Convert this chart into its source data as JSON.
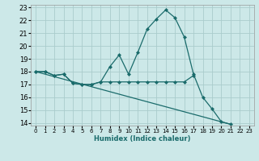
{
  "xlabel": "Humidex (Indice chaleur)",
  "bg_color": "#cce8e8",
  "grid_color": "#aacccc",
  "line_color": "#1a6b6b",
  "xlim": [
    -0.5,
    23.5
  ],
  "ylim": [
    13.8,
    23.2
  ],
  "yticks": [
    14,
    15,
    16,
    17,
    18,
    19,
    20,
    21,
    22,
    23
  ],
  "xticks": [
    0,
    1,
    2,
    3,
    4,
    5,
    6,
    7,
    8,
    9,
    10,
    11,
    12,
    13,
    14,
    15,
    16,
    17,
    18,
    19,
    20,
    21,
    22,
    23
  ],
  "line1_x": [
    0,
    1,
    2,
    3,
    4,
    5,
    6,
    7,
    8,
    9,
    10,
    11,
    12,
    13,
    14,
    15,
    16,
    17,
    18,
    19,
    20,
    21
  ],
  "line1_y": [
    18,
    18,
    17.7,
    17.8,
    17.1,
    17.0,
    17.0,
    17.2,
    18.4,
    19.3,
    17.8,
    19.5,
    21.3,
    22.1,
    22.8,
    22.2,
    20.7,
    17.8,
    16.0,
    15.1,
    14.1,
    13.9
  ],
  "line2_x": [
    0,
    1,
    2,
    3,
    4,
    5,
    6,
    7,
    8,
    9,
    10,
    11,
    12,
    13,
    14,
    15,
    16,
    17
  ],
  "line2_y": [
    18,
    18,
    17.7,
    17.8,
    17.1,
    17.0,
    17.0,
    17.2,
    17.2,
    17.2,
    17.2,
    17.2,
    17.2,
    17.2,
    17.2,
    17.2,
    17.2,
    17.7
  ],
  "line3_x": [
    0,
    21
  ],
  "line3_y": [
    18.0,
    13.9
  ]
}
